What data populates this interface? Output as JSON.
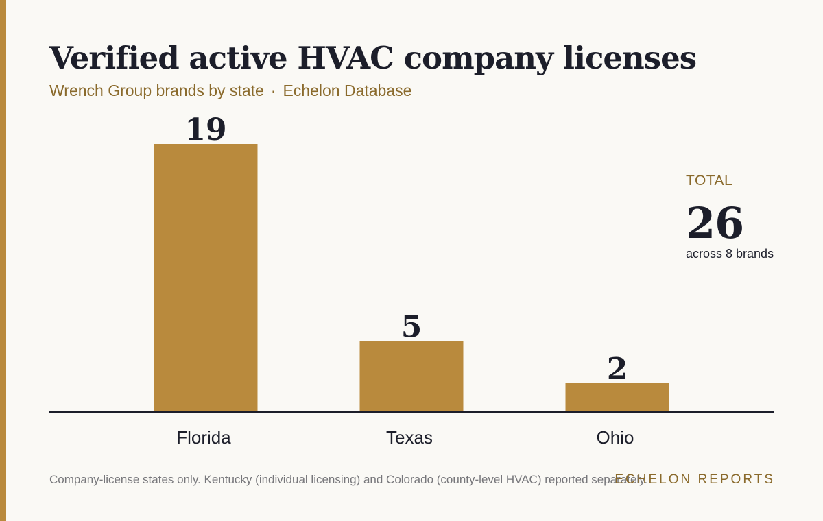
{
  "header": {
    "title": "Verified active HVAC company licenses",
    "subtitle_left": "Wrench Group brands by state",
    "subtitle_sep": "·",
    "subtitle_right": "Echelon Database"
  },
  "total": {
    "label": "TOTAL",
    "value": "26",
    "sub": "across 8 brands"
  },
  "footer": {
    "note": "Company-license states only. Kentucky (individual licensing) and Colorado (county-level HVAC) reported separately.",
    "brand": "ECHELON REPORTS"
  },
  "colors": {
    "accent": "#b98a3d",
    "text": "#1c1e2a",
    "background": "#faf9f5"
  },
  "chart_data": {
    "type": "bar",
    "categories": [
      "Florida",
      "Texas",
      "Ohio"
    ],
    "values": [
      19,
      5,
      2
    ],
    "title": "Verified active HVAC company licenses",
    "subtitle": "Wrench Group brands by state · Echelon Database",
    "xlabel": "",
    "ylabel": "",
    "ylim": [
      0,
      19
    ],
    "grid": false,
    "data_labels": true,
    "legend": "none"
  }
}
